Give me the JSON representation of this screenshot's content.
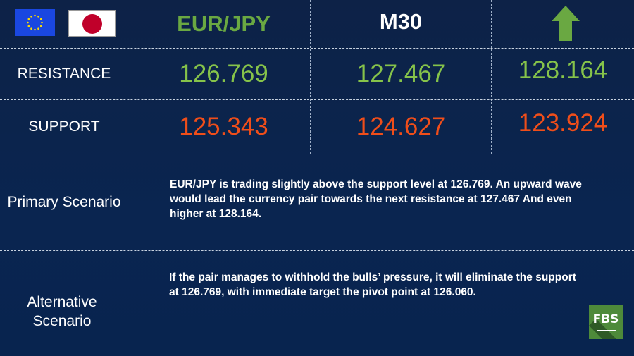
{
  "header": {
    "pair": "EUR/JPY",
    "timeframe": "M30",
    "direction_icon": "arrow-up-icon",
    "flags": [
      "eu-flag-icon",
      "japan-flag-icon"
    ]
  },
  "resistance": {
    "label": "RESISTANCE",
    "values": [
      "126.769",
      "127.467",
      "128.164"
    ]
  },
  "support": {
    "label": "SUPPORT",
    "values": [
      "125.343",
      "124.627",
      "123.924"
    ]
  },
  "primary": {
    "label": "Primary Scenario",
    "text": "EUR/JPY is trading slightly above the support level at 126.769. An upward wave would lead the currency pair towards the next resistance at 127.467 And even higher at 128.164."
  },
  "alternative": {
    "label_line1": "Alternative",
    "label_line2": "Scenario",
    "text": "If the pair manages to withhold the bulls’ pressure, it will eliminate the support at 126.769, with immediate target the pivot point at 126.060."
  },
  "logo": {
    "text": "FBS"
  },
  "colors": {
    "resistance": "#86c34a",
    "support": "#f04e1a",
    "background": "#0b2148",
    "logo": "#4e8a3a"
  }
}
